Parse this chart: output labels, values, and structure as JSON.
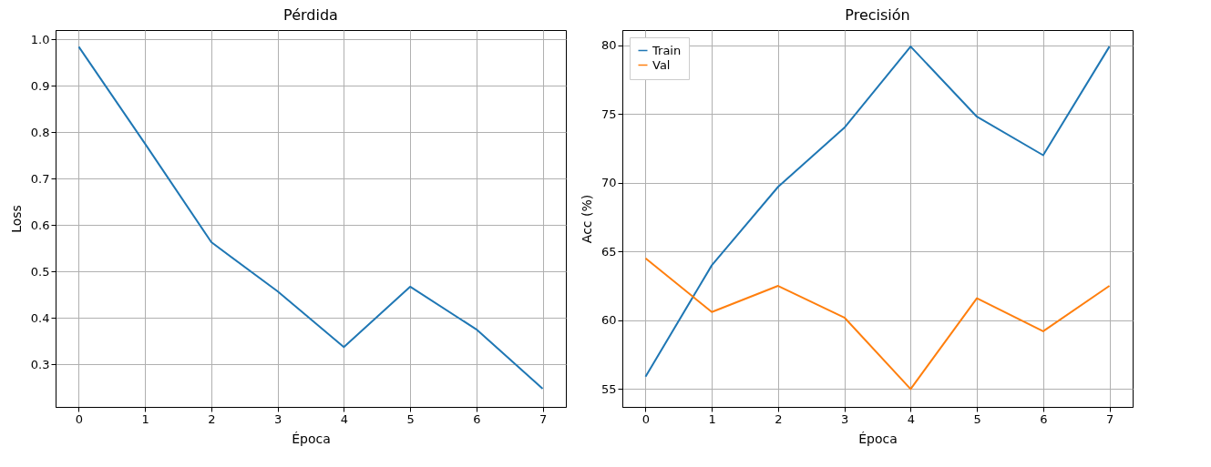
{
  "chart_data": [
    {
      "type": "line",
      "title": "Pérdida",
      "xlabel": "Época",
      "ylabel": "Loss",
      "x": [
        0,
        1,
        2,
        3,
        4,
        5,
        6,
        7
      ],
      "xlim": [
        -0.35,
        7.35
      ],
      "xticks": [
        0,
        1,
        2,
        3,
        4,
        5,
        6,
        7
      ],
      "ylim": [
        0.208,
        1.02
      ],
      "yticks": [
        0.3,
        0.4,
        0.5,
        0.6,
        0.7,
        0.8,
        0.9,
        {
          "value": 1,
          "label": "1.0"
        }
      ],
      "grid": true,
      "line_style": "solid",
      "series": [
        {
          "color": "#1f77b4",
          "values": [
            0.984,
            0.775,
            0.563,
            0.457,
            0.337,
            0.467,
            0.375,
            0.247
          ]
        }
      ]
    },
    {
      "type": "line",
      "title": "Precisión",
      "xlabel": "Época",
      "ylabel": "Acc (%)",
      "x": [
        0,
        1,
        2,
        3,
        4,
        5,
        6,
        7
      ],
      "xlim": [
        -0.35,
        7.35
      ],
      "xticks": [
        0,
        1,
        2,
        3,
        4,
        5,
        6,
        7
      ],
      "ylim": [
        53.7,
        81.1
      ],
      "yticks": [
        55,
        60,
        65,
        70,
        75,
        80
      ],
      "grid": true,
      "legend": "top left",
      "line_style": "solid",
      "series": [
        {
          "name": "Train",
          "color": "#1f77b4",
          "values": [
            55.9,
            64.0,
            69.7,
            74.0,
            79.9,
            74.8,
            72.0,
            79.9
          ]
        },
        {
          "name": "Val",
          "color": "#ff7f0e",
          "values": [
            64.5,
            60.6,
            62.5,
            60.2,
            55.0,
            61.6,
            59.2,
            62.5
          ]
        }
      ]
    }
  ]
}
